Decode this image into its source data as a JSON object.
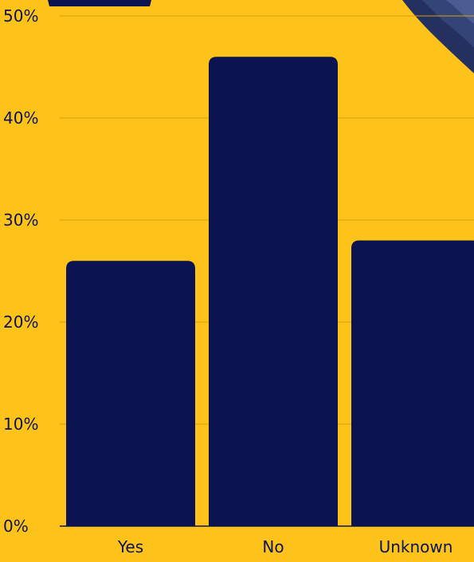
{
  "chart_data": {
    "type": "bar",
    "title": "",
    "xlabel": "",
    "ylabel": "",
    "categories": [
      "Yes",
      "No",
      "Unknown"
    ],
    "values": [
      26,
      46,
      28
    ],
    "ylim": [
      0,
      50
    ],
    "y_ticks": [
      "0%",
      "10%",
      "20%",
      "30%",
      "40%",
      "50%"
    ],
    "y_tick_values": [
      0,
      10,
      20,
      30,
      40,
      50
    ],
    "grid": true,
    "legend": "none"
  },
  "colors": {
    "background": "#fdc31b",
    "bar": "#0b1450",
    "gridline": "#d99f11",
    "text": "#0b1450"
  }
}
